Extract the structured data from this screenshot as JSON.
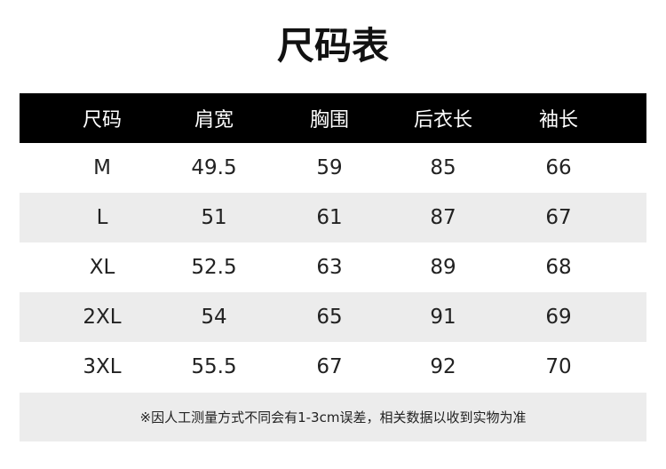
{
  "title": "尺码表",
  "headers": [
    "尺码",
    "肩宽",
    "胸围",
    "后衣长",
    "袖长"
  ],
  "rows": [
    [
      "M",
      "49.5",
      "59",
      "85",
      "66"
    ],
    [
      "L",
      "51",
      "61",
      "87",
      "67"
    ],
    [
      "XL",
      "52.5",
      "63",
      "89",
      "68"
    ],
    [
      "2XL",
      "54",
      "65",
      "91",
      "69"
    ],
    [
      "3XL",
      "55.5",
      "67",
      "92",
      "70"
    ]
  ],
  "note": "※因人工测量方式不同会有1-3cm误差，相关数据以收到实物为准",
  "colors": {
    "header_bg": "#000000",
    "stripe": "#ececec"
  }
}
